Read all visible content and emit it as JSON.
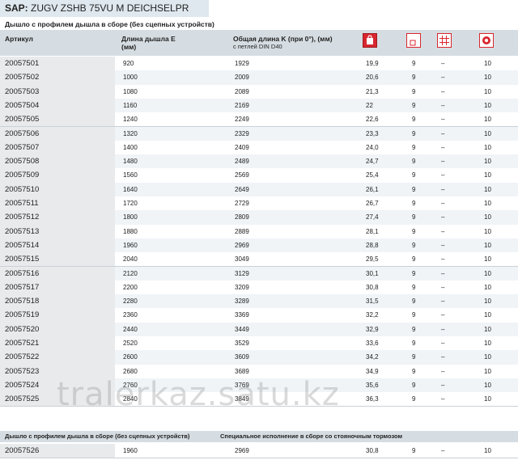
{
  "sap": {
    "prefix": "SAP:",
    "code": "ZUGV ZSHB 75VU M DEICHSELPR"
  },
  "section1_title": "Дышло с профилем дышла в сборе (без сцепных устройств)",
  "columns": {
    "article": "Артикул",
    "length_e": "Длина дышла E",
    "length_e_unit": "(мм)",
    "total_length": "Общая длина K (при 0°), (мм)",
    "total_length_sub": "с петлей DIN D40"
  },
  "icons": {
    "weight": "weight-icon",
    "square": "square-icon",
    "grid": "grid-icon",
    "pallet": "pallet-icon"
  },
  "rows": [
    {
      "art": "20057501",
      "e": "920",
      "k": "1929",
      "w": "19,9",
      "a": "9",
      "b": "–",
      "c": "10"
    },
    {
      "art": "20057502",
      "e": "1000",
      "k": "2009",
      "w": "20,6",
      "a": "9",
      "b": "–",
      "c": "10"
    },
    {
      "art": "20057503",
      "e": "1080",
      "k": "2089",
      "w": "21,3",
      "a": "9",
      "b": "–",
      "c": "10"
    },
    {
      "art": "20057504",
      "e": "1160",
      "k": "2169",
      "w": "22",
      "a": "9",
      "b": "–",
      "c": "10"
    },
    {
      "art": "20057505",
      "e": "1240",
      "k": "2249",
      "w": "22,6",
      "a": "9",
      "b": "–",
      "c": "10"
    },
    {
      "art": "20057506",
      "e": "1320",
      "k": "2329",
      "w": "23,3",
      "a": "9",
      "b": "–",
      "c": "10"
    },
    {
      "art": "20057507",
      "e": "1400",
      "k": "2409",
      "w": "24,0",
      "a": "9",
      "b": "–",
      "c": "10"
    },
    {
      "art": "20057508",
      "e": "1480",
      "k": "2489",
      "w": "24,7",
      "a": "9",
      "b": "–",
      "c": "10"
    },
    {
      "art": "20057509",
      "e": "1560",
      "k": "2569",
      "w": "25,4",
      "a": "9",
      "b": "–",
      "c": "10"
    },
    {
      "art": "20057510",
      "e": "1640",
      "k": "2649",
      "w": "26,1",
      "a": "9",
      "b": "–",
      "c": "10"
    },
    {
      "art": "20057511",
      "e": "1720",
      "k": "2729",
      "w": "26,7",
      "a": "9",
      "b": "–",
      "c": "10"
    },
    {
      "art": "20057512",
      "e": "1800",
      "k": "2809",
      "w": "27,4",
      "a": "9",
      "b": "–",
      "c": "10"
    },
    {
      "art": "20057513",
      "e": "1880",
      "k": "2889",
      "w": "28,1",
      "a": "9",
      "b": "–",
      "c": "10"
    },
    {
      "art": "20057514",
      "e": "1960",
      "k": "2969",
      "w": "28,8",
      "a": "9",
      "b": "–",
      "c": "10"
    },
    {
      "art": "20057515",
      "e": "2040",
      "k": "3049",
      "w": "29,5",
      "a": "9",
      "b": "–",
      "c": "10"
    },
    {
      "art": "20057516",
      "e": "2120",
      "k": "3129",
      "w": "30,1",
      "a": "9",
      "b": "–",
      "c": "10"
    },
    {
      "art": "20057517",
      "e": "2200",
      "k": "3209",
      "w": "30,8",
      "a": "9",
      "b": "–",
      "c": "10"
    },
    {
      "art": "20057518",
      "e": "2280",
      "k": "3289",
      "w": "31,5",
      "a": "9",
      "b": "–",
      "c": "10"
    },
    {
      "art": "20057519",
      "e": "2360",
      "k": "3369",
      "w": "32,2",
      "a": "9",
      "b": "–",
      "c": "10"
    },
    {
      "art": "20057520",
      "e": "2440",
      "k": "3449",
      "w": "32,9",
      "a": "9",
      "b": "–",
      "c": "10"
    },
    {
      "art": "20057521",
      "e": "2520",
      "k": "3529",
      "w": "33,6",
      "a": "9",
      "b": "–",
      "c": "10"
    },
    {
      "art": "20057522",
      "e": "2600",
      "k": "3609",
      "w": "34,2",
      "a": "9",
      "b": "–",
      "c": "10"
    },
    {
      "art": "20057523",
      "e": "2680",
      "k": "3689",
      "w": "34,9",
      "a": "9",
      "b": "–",
      "c": "10"
    },
    {
      "art": "20057524",
      "e": "2760",
      "k": "3769",
      "w": "35,6",
      "a": "9",
      "b": "–",
      "c": "10"
    },
    {
      "art": "20057525",
      "e": "2840",
      "k": "3849",
      "w": "36,3",
      "a": "9",
      "b": "–",
      "c": "10"
    }
  ],
  "section2_left": "Дышло с профилем дышла в сборе (без сцепных устройств)",
  "section2_right": "Специальное исполнение в сборе со стояночным тормозом",
  "rows2": [
    {
      "art": "20057526",
      "e": "1960",
      "k": "2969",
      "w": "30,8",
      "a": "9",
      "b": "–",
      "c": "10"
    }
  ],
  "watermark": "tralerkaz.satu.kz"
}
